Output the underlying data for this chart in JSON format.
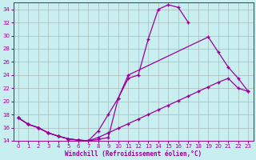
{
  "xlabel": "Windchill (Refroidissement éolien,°C)",
  "bg_color": "#c8eef0",
  "line_color": "#990099",
  "grid_color": "#aabbbb",
  "ylim": [
    14,
    35
  ],
  "xlim": [
    -0.5,
    23.5
  ],
  "yticks": [
    14,
    16,
    18,
    20,
    22,
    24,
    26,
    28,
    30,
    32,
    34
  ],
  "xticks": [
    0,
    1,
    2,
    3,
    4,
    5,
    6,
    7,
    8,
    9,
    10,
    11,
    12,
    13,
    14,
    15,
    16,
    17,
    18,
    19,
    20,
    21,
    22,
    23
  ],
  "line1_x": [
    0,
    1,
    2,
    3,
    4,
    5,
    6,
    7,
    8,
    9,
    10,
    11,
    12,
    13,
    14,
    15,
    16,
    17
  ],
  "line1_y": [
    17.5,
    16.5,
    16.0,
    15.2,
    14.7,
    14.3,
    14.1,
    14.0,
    14.2,
    14.5,
    20.5,
    23.5,
    24.0,
    29.5,
    34.0,
    34.7,
    34.3,
    32.0
  ],
  "line2_x": [
    0,
    1,
    2,
    3,
    4,
    5,
    6,
    7,
    8,
    9,
    10,
    11,
    19,
    20,
    21,
    22,
    23
  ],
  "line2_y": [
    17.5,
    16.5,
    16.0,
    15.2,
    14.7,
    14.3,
    14.1,
    14.0,
    15.5,
    18.0,
    20.5,
    24.0,
    29.8,
    27.5,
    25.2,
    23.5,
    21.5
  ],
  "line3_x": [
    0,
    1,
    2,
    3,
    4,
    5,
    6,
    7,
    8,
    9,
    10,
    11,
    12,
    13,
    14,
    15,
    16,
    17,
    18,
    19,
    20,
    21,
    22,
    23
  ],
  "line3_y": [
    17.5,
    16.5,
    16.0,
    15.2,
    14.7,
    14.3,
    14.1,
    14.0,
    14.5,
    15.2,
    15.9,
    16.6,
    17.3,
    18.0,
    18.7,
    19.4,
    20.1,
    20.8,
    21.5,
    22.2,
    22.9,
    23.5,
    22.0,
    21.5
  ]
}
